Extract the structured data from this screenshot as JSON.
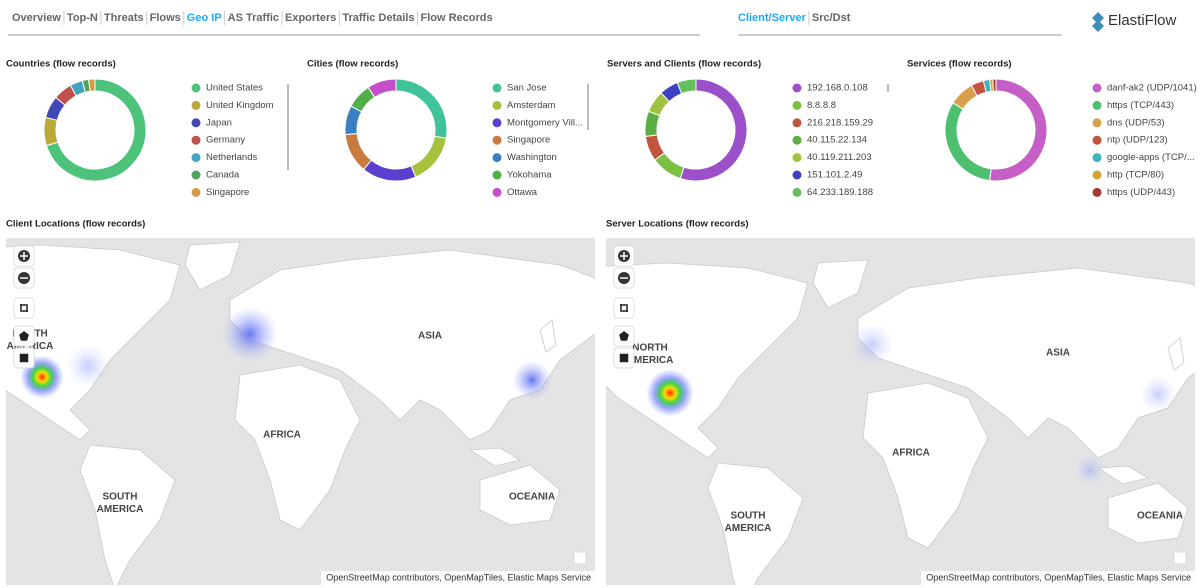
{
  "nav": {
    "tabs": [
      {
        "label": "Overview"
      },
      {
        "label": "Top-N"
      },
      {
        "label": "Threats"
      },
      {
        "label": "Flows"
      },
      {
        "label": "Geo IP",
        "active": true
      },
      {
        "label": "AS Traffic"
      },
      {
        "label": "Exporters"
      },
      {
        "label": "Traffic Details"
      },
      {
        "label": "Flow Records"
      }
    ]
  },
  "view_tabs": [
    {
      "label": "Client/Server",
      "active": true
    },
    {
      "label": "Src/Dst"
    }
  ],
  "logo": "ElastiFlow",
  "panels": [
    {
      "title": "Countries (flow records)",
      "type": "donut",
      "categories": [
        "United States",
        "United Kingdom",
        "Japan",
        "Germany",
        "Netherlands",
        "Canada",
        "Singapore"
      ],
      "values": [
        70,
        9,
        7,
        6,
        4,
        2,
        2
      ],
      "colors": [
        "#4cc27a",
        "#b9aa3a",
        "#3f48b5",
        "#c0514a",
        "#42a5bf",
        "#54a35a",
        "#d49c48"
      ]
    },
    {
      "title": "Cities (flow records)",
      "type": "donut",
      "categories": [
        "San Jose",
        "Amsterdam",
        "Montgomery Vill...",
        "Singapore",
        "Washington",
        "Yokohama",
        "Ottawa"
      ],
      "values": [
        24,
        14,
        15,
        11,
        8,
        7,
        8
      ],
      "colors": [
        "#40c29a",
        "#a6c13b",
        "#5b3fcf",
        "#c87a3f",
        "#3a7fc0",
        "#4fb04a",
        "#c44fc6"
      ]
    },
    {
      "title": "Servers and Clients (flow records)",
      "type": "donut",
      "categories": [
        "192.168.0.108",
        "8.8.8.8",
        "216.218.159.29",
        "40.115.22.134",
        "40.119.211.203",
        "151.101.2.49",
        "64.233.189.188"
      ],
      "values": [
        55,
        10,
        8,
        8,
        7,
        6,
        6
      ],
      "colors": [
        "#9b4fc9",
        "#7ac043",
        "#c2533e",
        "#5aad42",
        "#a3c140",
        "#3d3fc5",
        "#62c15a"
      ]
    },
    {
      "title": "Services (flow records)",
      "type": "donut",
      "categories": [
        "danf-ak2 (UDP/1041)",
        "https (TCP/443)",
        "dns (UDP/53)",
        "ntp (UDP/123)",
        "google-apps (TCP/...",
        "http (TCP/80)",
        "https (UDP/443)"
      ],
      "values": [
        52,
        32,
        8,
        4,
        2,
        1,
        1
      ],
      "colors": [
        "#c65ec7",
        "#4ebf6f",
        "#d8a04a",
        "#c4533f",
        "#3fb5c1",
        "#cfa53a",
        "#a23a32"
      ]
    }
  ],
  "maps": [
    {
      "title": "Client Locations (flow records)",
      "labels": [
        [
          "NORTH",
          "AMERICA"
        ],
        [
          "ASIA"
        ],
        [
          "AFRICA"
        ],
        [
          "SOUTH",
          "AMERICA"
        ],
        [
          "OCEANIA"
        ]
      ],
      "attribution": "OpenStreetMap contributors, OpenMapTiles, Elastic Maps Service"
    },
    {
      "title": "Server Locations (flow records)",
      "labels": [
        [
          "NORTH",
          "AMERICA"
        ],
        [
          "ASIA"
        ],
        [
          "AFRICA"
        ],
        [
          "SOUTH",
          "AMERICA"
        ],
        [
          "OCEANIA"
        ]
      ],
      "attribution": "OpenStreetMap contributors, OpenMapTiles, Elastic Maps Service"
    }
  ]
}
